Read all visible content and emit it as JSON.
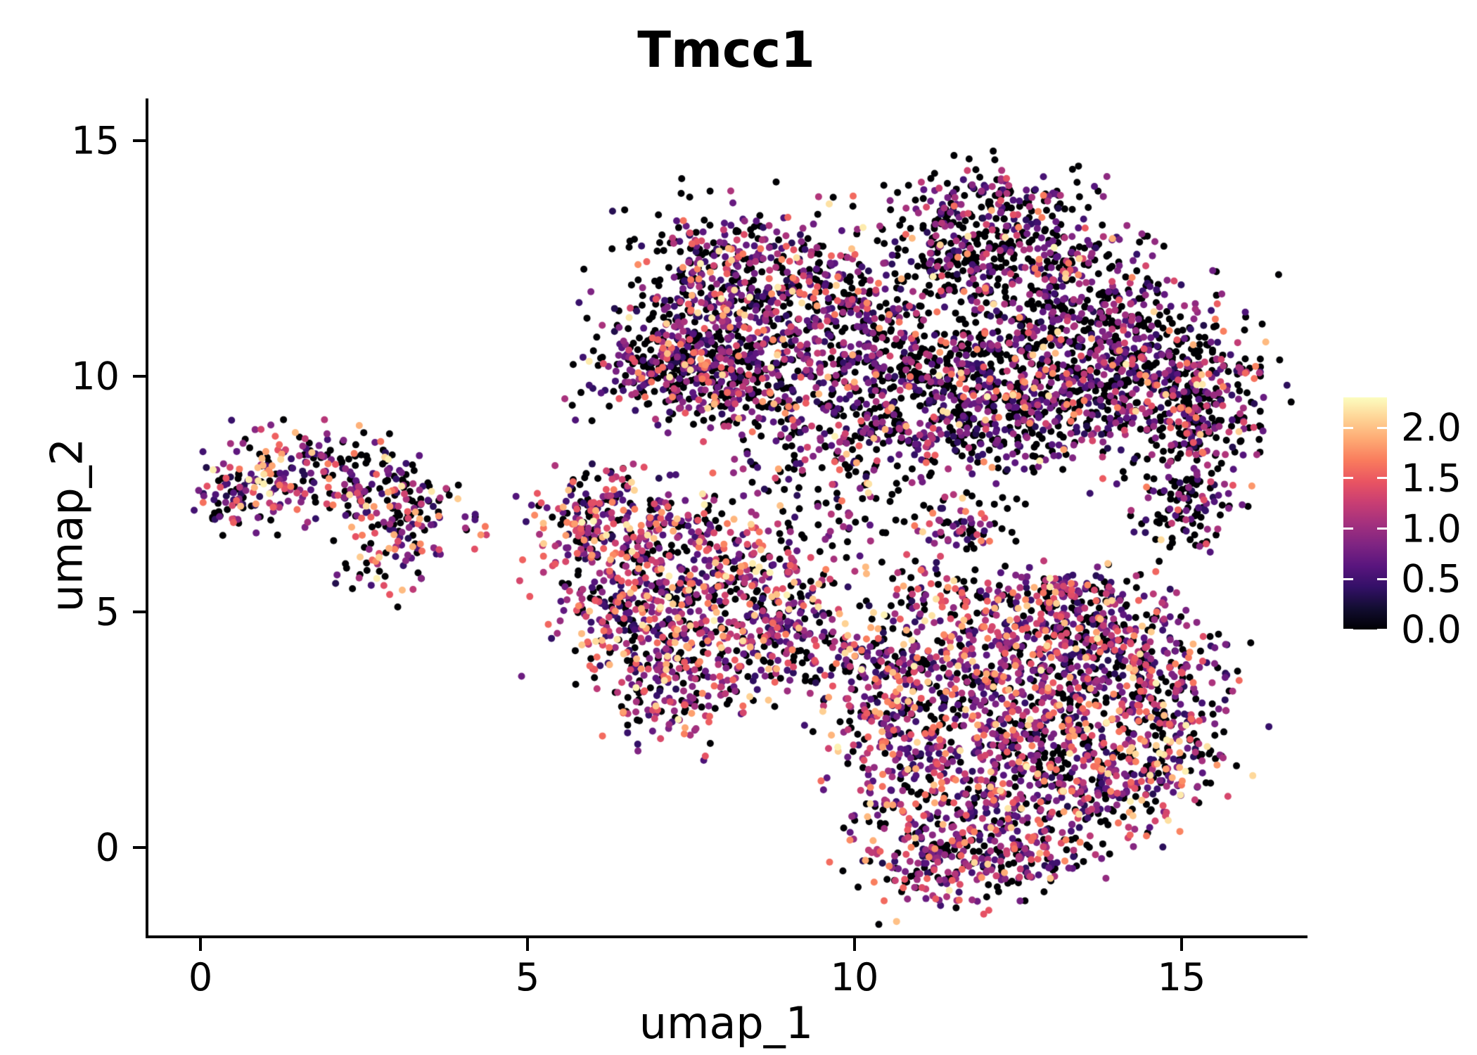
{
  "chart_data": {
    "type": "scatter",
    "title": "Tmcc1",
    "xlabel": "umap_1",
    "ylabel": "umap_2",
    "xlim": [
      -0.8,
      16.8
    ],
    "ylim": [
      -1.8,
      15.9
    ],
    "x_ticks": [
      0,
      5,
      10,
      15
    ],
    "y_ticks": [
      0,
      5,
      10,
      15
    ],
    "grid": false,
    "background": "#ffffff",
    "axis_color": "#000000",
    "point_radius_px": 5,
    "seed": 42,
    "legend": {
      "type": "colorbar",
      "position": "right",
      "tick_labels": [
        "2.0",
        "1.5",
        "1.0",
        "0.5",
        "0.0"
      ],
      "tick_values": [
        2.0,
        1.5,
        1.0,
        0.5,
        0.0
      ],
      "vmin": 0.0,
      "vmax": 2.3
    },
    "colormap": {
      "name": "magma",
      "stops": [
        "#000004",
        "#120d31",
        "#331067",
        "#59157e",
        "#7e2482",
        "#a3307e",
        "#c83e73",
        "#e95462",
        "#f97b5d",
        "#fea973",
        "#fed395",
        "#fcfdbf"
      ]
    },
    "value_bins": {
      "zero": 0,
      "mid": [
        0.3,
        1.15
      ],
      "high": [
        1.15,
        1.75
      ],
      "vhigh": [
        1.75,
        2.25
      ]
    },
    "clusters": [
      {
        "name": "left-island",
        "value_weights": [
          0.34,
          0.44,
          0.16,
          0.06
        ],
        "blobs": [
          [
            0.7,
            7.4,
            0.45,
            0.35,
            90
          ],
          [
            1.5,
            8.1,
            0.55,
            0.5,
            110
          ],
          [
            2.3,
            7.9,
            0.5,
            0.4,
            80
          ],
          [
            2.9,
            6.6,
            0.45,
            0.55,
            110
          ],
          [
            3.3,
            7.4,
            0.3,
            0.3,
            40
          ],
          [
            4.2,
            6.9,
            0.3,
            0.12,
            9
          ]
        ]
      },
      {
        "name": "mid-left-cluster",
        "value_weights": [
          0.3,
          0.4,
          0.21,
          0.09
        ],
        "blobs": [
          [
            6.2,
            6.9,
            0.5,
            0.55,
            140
          ],
          [
            7.3,
            6.3,
            0.8,
            0.7,
            240
          ],
          [
            6.7,
            5.0,
            0.7,
            0.7,
            240
          ],
          [
            7.7,
            4.0,
            0.8,
            0.6,
            220
          ],
          [
            8.6,
            5.5,
            0.65,
            0.8,
            190
          ],
          [
            8.9,
            4.3,
            0.5,
            0.5,
            90
          ],
          [
            7.2,
            2.9,
            0.45,
            0.45,
            70
          ],
          [
            5.8,
            6.9,
            0.25,
            0.5,
            50
          ]
        ]
      },
      {
        "name": "top-middle-cluster",
        "value_weights": [
          0.44,
          0.4,
          0.12,
          0.04
        ],
        "blobs": [
          [
            7.9,
            12.5,
            0.65,
            0.55,
            190
          ],
          [
            8.7,
            11.6,
            0.75,
            0.65,
            210
          ],
          [
            7.4,
            10.9,
            0.6,
            0.55,
            170
          ],
          [
            7.3,
            10.1,
            0.8,
            0.45,
            240
          ],
          [
            8.8,
            10.3,
            0.8,
            0.55,
            210
          ],
          [
            9.6,
            11.9,
            0.5,
            0.8,
            120
          ],
          [
            8.3,
            9.4,
            0.7,
            0.35,
            90
          ]
        ]
      },
      {
        "name": "top-right-cluster",
        "value_weights": [
          0.5,
          0.38,
          0.095,
          0.025
        ],
        "blobs": [
          [
            12.0,
            13.6,
            0.7,
            0.45,
            170
          ],
          [
            12.9,
            12.6,
            0.8,
            0.65,
            210
          ],
          [
            11.6,
            12.4,
            0.6,
            0.55,
            150
          ],
          [
            13.8,
            11.1,
            0.9,
            0.75,
            270
          ],
          [
            12.5,
            10.3,
            0.9,
            0.75,
            290
          ],
          [
            11.2,
            9.9,
            0.8,
            0.65,
            250
          ],
          [
            14.8,
            10.1,
            0.75,
            0.65,
            280
          ],
          [
            13.5,
            9.3,
            0.9,
            0.55,
            250
          ],
          [
            15.3,
            8.9,
            0.5,
            0.55,
            140
          ],
          [
            10.4,
            11.3,
            0.5,
            0.75,
            110
          ],
          [
            15.0,
            7.3,
            0.45,
            0.5,
            120
          ],
          [
            12.1,
            8.8,
            0.7,
            0.5,
            150
          ],
          [
            10.3,
            8.9,
            0.5,
            0.4,
            80
          ]
        ]
      },
      {
        "name": "sparse-center",
        "value_weights": [
          0.48,
          0.36,
          0.12,
          0.04
        ],
        "blobs": [
          [
            10.0,
            7.6,
            0.9,
            0.8,
            130
          ],
          [
            11.6,
            6.8,
            0.35,
            0.3,
            60
          ],
          [
            9.3,
            8.7,
            0.5,
            0.5,
            60
          ]
        ]
      },
      {
        "name": "bottom-right-cluster",
        "value_weights": [
          0.32,
          0.42,
          0.19,
          0.07
        ],
        "blobs": [
          [
            10.4,
            3.9,
            0.55,
            0.65,
            170
          ],
          [
            11.5,
            3.2,
            0.75,
            0.75,
            240
          ],
          [
            12.6,
            4.3,
            0.75,
            0.65,
            240
          ],
          [
            13.8,
            4.6,
            0.65,
            0.55,
            190
          ],
          [
            14.6,
            3.4,
            0.65,
            0.65,
            210
          ],
          [
            13.3,
            2.6,
            0.75,
            0.65,
            240
          ],
          [
            12.3,
            1.5,
            0.7,
            0.65,
            210
          ],
          [
            13.9,
            1.2,
            0.65,
            0.55,
            190
          ],
          [
            11.3,
            0.3,
            0.65,
            0.55,
            190
          ],
          [
            12.5,
            -0.2,
            0.6,
            0.4,
            140
          ],
          [
            11.4,
            -0.7,
            0.5,
            0.35,
            60
          ],
          [
            10.6,
            1.9,
            0.5,
            0.65,
            130
          ],
          [
            14.9,
            2.0,
            0.4,
            0.5,
            100
          ],
          [
            11.6,
            5.2,
            0.5,
            0.4,
            90
          ],
          [
            13.2,
            5.4,
            0.5,
            0.3,
            80
          ]
        ]
      }
    ]
  }
}
